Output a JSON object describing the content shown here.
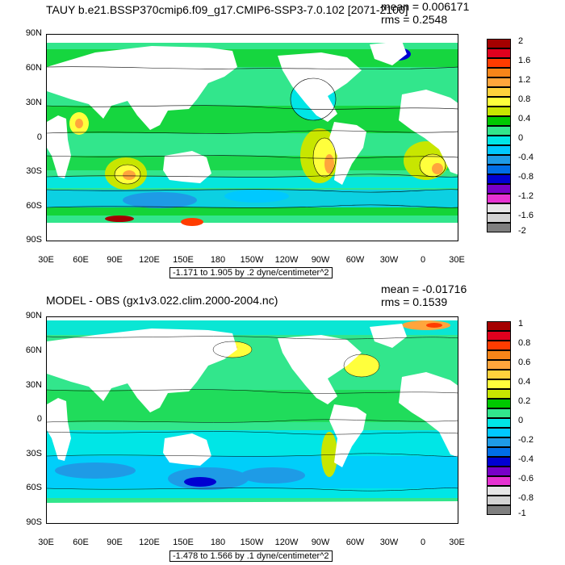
{
  "panels": [
    {
      "title": "TAUY b.e21.BSSP370cmip6.f09_g17.CMIP6-SSP3-7.0.102 [2071-2100]",
      "mean": "mean = 0.006171",
      "rms": "rms = 0.2548",
      "range": "-1.171 to 1.905 by .2 dyne/centimeter^2",
      "lat_labels": [
        "90N",
        "60N",
        "30N",
        "0",
        "30S",
        "60S",
        "90S"
      ],
      "lon_labels": [
        "30E",
        "60E",
        "90E",
        "120E",
        "150E",
        "180",
        "150W",
        "120W",
        "90W",
        "60W",
        "30W",
        "0",
        "30E"
      ],
      "colorbar": {
        "labels": [
          "2",
          "1.6",
          "1.2",
          "0.8",
          "0.4",
          "0",
          "-0.4",
          "-0.8",
          "-1.2",
          "-1.6",
          "-2"
        ],
        "colors": [
          "#a50000",
          "#e0001e",
          "#ff3c00",
          "#f78519",
          "#ffa53c",
          "#ffd23c",
          "#ffff3c",
          "#c8e600",
          "#00c800",
          "#32e68c",
          "#00e6e6",
          "#00c8ff",
          "#1e9be6",
          "#006ee6",
          "#0000d2",
          "#7800c8",
          "#e632d2",
          "#e6e6e6",
          "#d2d2d2",
          "#7f7f7f"
        ]
      }
    },
    {
      "title": "MODEL - OBS (gx1v3.022.clim.2000-2004.nc)",
      "mean": "mean = -0.01716",
      "rms": "rms = 0.1539",
      "range": "-1.478 to 1.566 by .1 dyne/centimeter^2",
      "lat_labels": [
        "90N",
        "60N",
        "30N",
        "0",
        "30S",
        "60S",
        "90S"
      ],
      "lon_labels": [
        "30E",
        "60E",
        "90E",
        "120E",
        "150E",
        "180",
        "150W",
        "120W",
        "90W",
        "60W",
        "30W",
        "0",
        "30E"
      ],
      "colorbar": {
        "labels": [
          "1",
          "0.8",
          "0.6",
          "0.4",
          "0.2",
          "0",
          "-0.2",
          "-0.4",
          "-0.6",
          "-0.8",
          "-1"
        ],
        "colors": [
          "#a50000",
          "#e0001e",
          "#ff3c00",
          "#f78519",
          "#ffa53c",
          "#ffd23c",
          "#ffff3c",
          "#c8e600",
          "#00c800",
          "#32e68c",
          "#00e6e6",
          "#00c8ff",
          "#1e9be6",
          "#006ee6",
          "#0000d2",
          "#7800c8",
          "#e632d2",
          "#e6e6e6",
          "#d2d2d2",
          "#7f7f7f"
        ]
      }
    }
  ]
}
